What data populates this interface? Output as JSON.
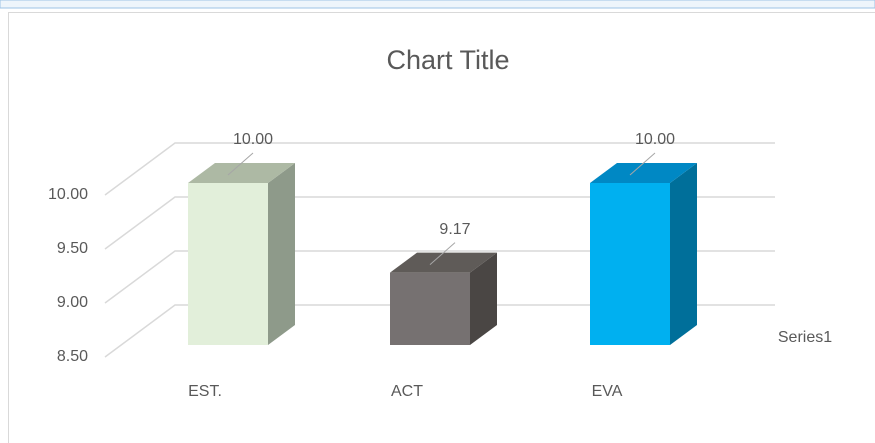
{
  "chart_data": {
    "type": "bar3d",
    "title": "Chart Title",
    "categories": [
      "EST.",
      "ACT",
      "EVA"
    ],
    "series": [
      {
        "name": "Series1",
        "values": [
          10,
          9.17,
          10
        ],
        "value_labels": [
          "10.00",
          "9.17",
          "10.00"
        ],
        "colors": [
          [
            "#e2efda",
            "#8e9a8a",
            "#adb9a4"
          ],
          [
            "#767171",
            "#4a4644",
            "#5f5b58"
          ],
          [
            "#00b0f0",
            "#006f9a",
            "#0088c4"
          ]
        ]
      }
    ],
    "ylim": [
      8.5,
      10
    ],
    "yticks": [
      {
        "value": 8.5,
        "label": "8.50"
      },
      {
        "value": 9,
        "label": "9.00"
      },
      {
        "value": 9.5,
        "label": "9.50"
      },
      {
        "value": 10,
        "label": "10.00"
      }
    ],
    "grid": true
  }
}
